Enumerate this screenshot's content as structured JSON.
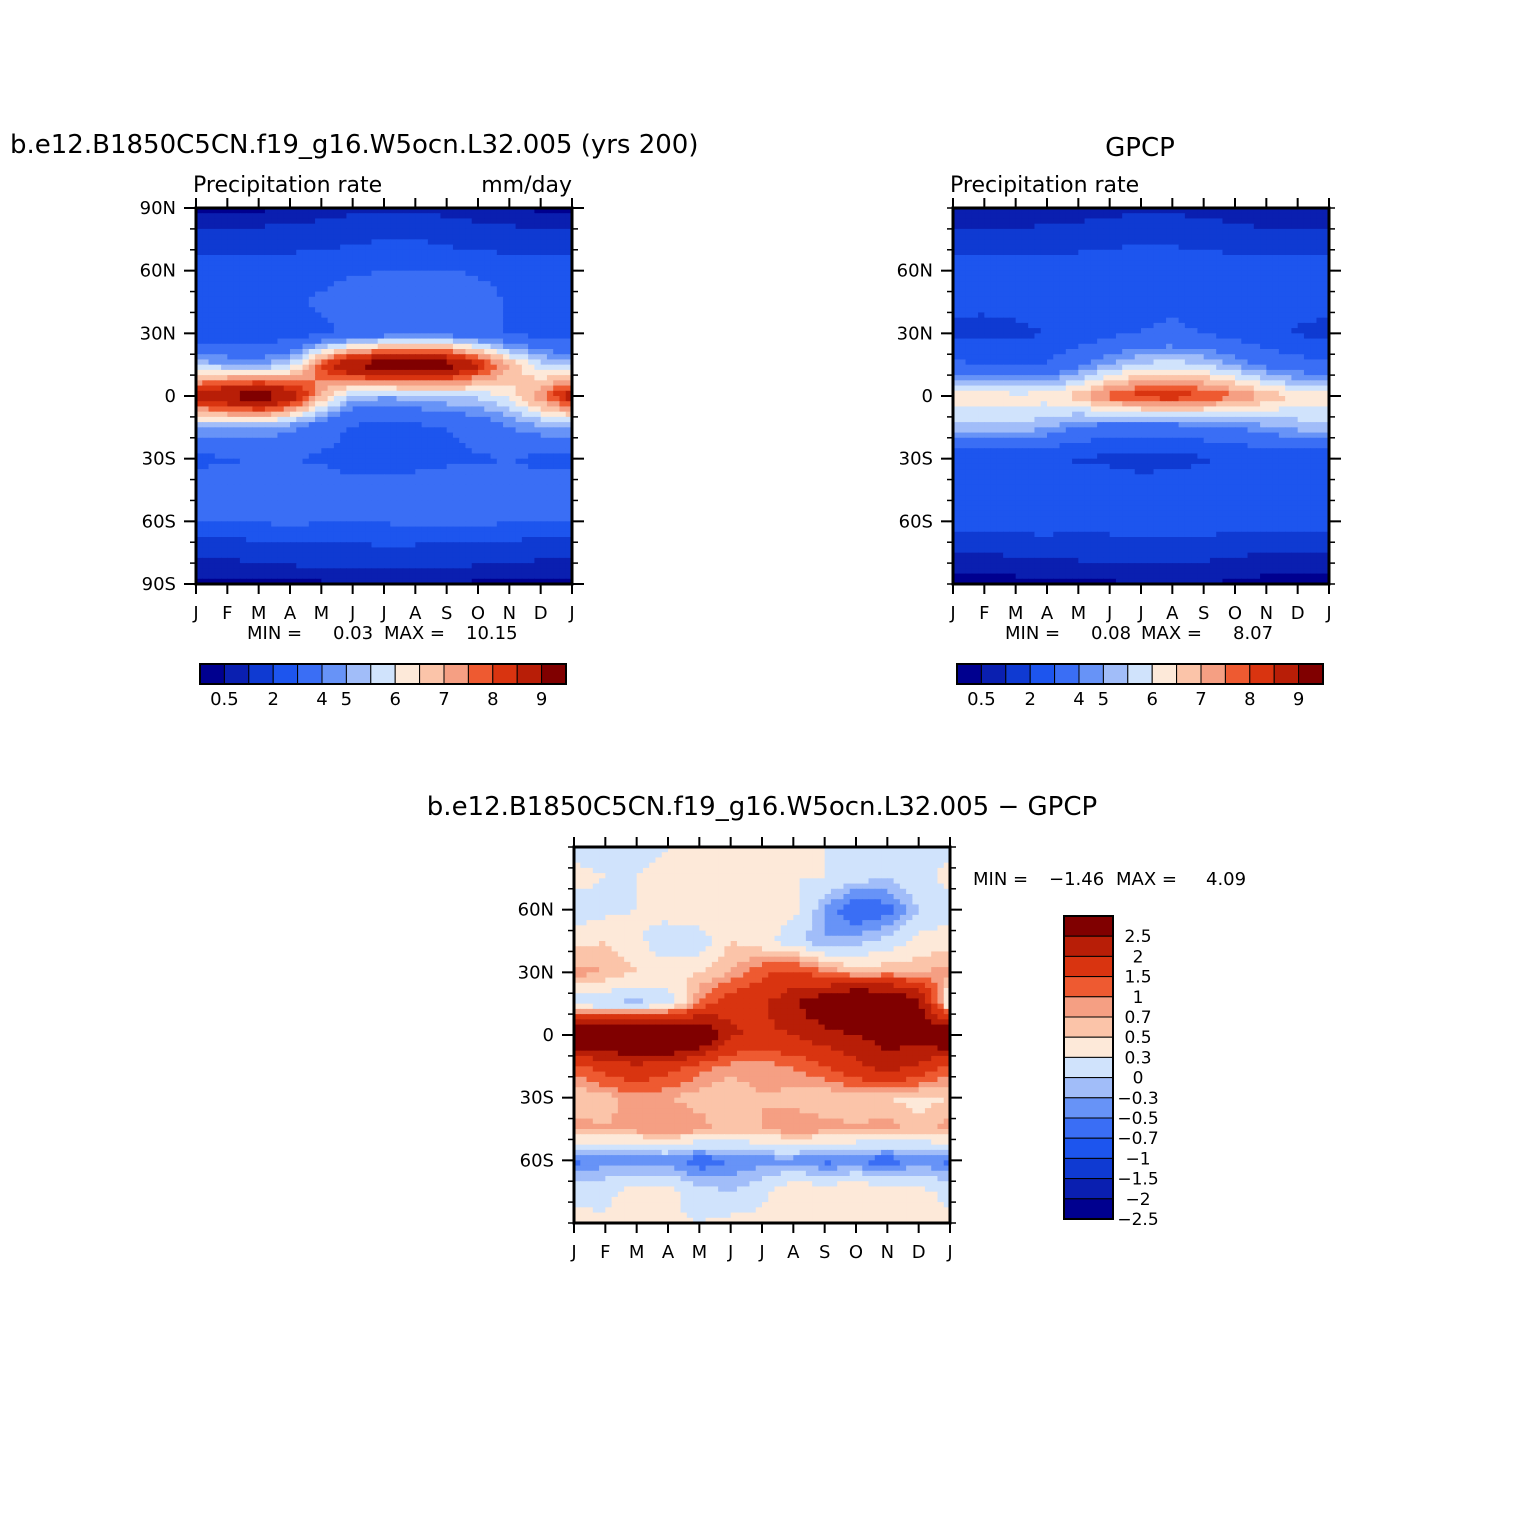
{
  "chart_data": [
    {
      "type": "heatmap",
      "title": "b.e12.B1850C5CN.f19_g16.W5ocn.L32.005 (yrs 200)",
      "left_string": "Precipitation rate",
      "right_string": "mm/day",
      "x_tick_labels": [
        "J",
        "F",
        "M",
        "A",
        "M",
        "J",
        "J",
        "A",
        "S",
        "O",
        "N",
        "D",
        "J"
      ],
      "y_tick_labels": [
        "90N",
        "60N",
        "30N",
        "0",
        "30S",
        "60S",
        "90S"
      ],
      "y_tick_values": [
        90,
        60,
        30,
        0,
        -30,
        -60,
        -90
      ],
      "ylim": [
        -90,
        90
      ],
      "stats": {
        "min_label": "MIN =",
        "min": "0.03",
        "max_label": "MAX =",
        "max": "10.15"
      },
      "colorbar": {
        "orientation": "horizontal",
        "colors": [
          "#00008f",
          "#0a1fb0",
          "#0f3ad2",
          "#1d55ee",
          "#3a6ef5",
          "#6793f7",
          "#a1bdf9",
          "#d0e3fc",
          "#fde9d9",
          "#fbc4a9",
          "#f59f83",
          "#ee5a31",
          "#d93410",
          "#b81e07",
          "#800000"
        ],
        "labels": [
          "0.5",
          "2",
          "4",
          "5",
          "6",
          "7",
          "8",
          "9"
        ]
      },
      "values_lat": [
        -90,
        -75,
        -60,
        -45,
        -30,
        -15,
        0,
        15,
        30,
        45,
        60,
        75,
        90
      ],
      "values_month": [
        "J",
        "F",
        "M",
        "A",
        "M",
        "J",
        "J",
        "A",
        "S",
        "O",
        "N",
        "D",
        "J"
      ],
      "values": [
        [
          0.3,
          0.3,
          0.3,
          0.4,
          0.4,
          0.5,
          0.5,
          0.5,
          0.5,
          0.4,
          0.4,
          0.3,
          0.3
        ],
        [
          1.2,
          1.2,
          1.3,
          1.4,
          1.5,
          1.6,
          1.7,
          1.6,
          1.5,
          1.4,
          1.3,
          1.2,
          1.2
        ],
        [
          3.0,
          3.0,
          3.1,
          3.2,
          3.1,
          3.0,
          3.1,
          3.2,
          3.3,
          3.2,
          3.1,
          3.0,
          3.0
        ],
        [
          3.4,
          3.5,
          3.8,
          3.6,
          3.4,
          3.3,
          3.3,
          3.4,
          3.6,
          3.5,
          3.4,
          3.4,
          3.4
        ],
        [
          2.8,
          2.9,
          3.0,
          3.0,
          2.9,
          2.7,
          2.6,
          2.7,
          2.8,
          2.9,
          3.0,
          2.8,
          2.8
        ],
        [
          4.5,
          4.6,
          4.5,
          4.2,
          3.4,
          2.9,
          2.7,
          2.8,
          3.0,
          3.4,
          4.0,
          4.4,
          4.5
        ],
        [
          8.5,
          9.2,
          9.8,
          8.8,
          6.5,
          4.8,
          4.6,
          4.8,
          5.0,
          5.1,
          5.6,
          7.0,
          8.5
        ],
        [
          4.8,
          4.6,
          4.4,
          5.0,
          7.5,
          9.2,
          9.8,
          10.1,
          9.6,
          8.2,
          6.5,
          5.2,
          4.8
        ],
        [
          2.4,
          2.2,
          2.2,
          2.5,
          2.8,
          3.2,
          3.5,
          3.6,
          3.6,
          3.3,
          2.9,
          2.6,
          2.4
        ],
        [
          2.4,
          2.5,
          2.7,
          2.9,
          3.1,
          3.4,
          3.6,
          3.8,
          3.7,
          3.4,
          2.9,
          2.6,
          2.4
        ],
        [
          2.6,
          2.5,
          2.5,
          2.6,
          2.8,
          2.9,
          3.0,
          3.1,
          3.0,
          2.9,
          2.7,
          2.6,
          2.6
        ],
        [
          1.3,
          1.3,
          1.4,
          1.5,
          1.6,
          1.8,
          2.0,
          2.0,
          1.7,
          1.5,
          1.4,
          1.3,
          1.3
        ],
        [
          0.4,
          0.4,
          0.4,
          0.5,
          0.6,
          0.8,
          0.9,
          0.9,
          0.7,
          0.6,
          0.5,
          0.4,
          0.4
        ]
      ]
    },
    {
      "type": "heatmap",
      "title": "GPCP",
      "left_string": "Precipitation rate",
      "right_string": "",
      "x_tick_labels": [
        "J",
        "F",
        "M",
        "A",
        "M",
        "J",
        "J",
        "A",
        "S",
        "O",
        "N",
        "D",
        "J"
      ],
      "y_tick_labels": [
        "60N",
        "30N",
        "0",
        "30S",
        "60S"
      ],
      "y_tick_values": [
        60,
        30,
        0,
        -30,
        -60
      ],
      "ylim": [
        -90,
        90
      ],
      "stats": {
        "min_label": "MIN =",
        "min": "0.08",
        "max_label": "MAX =",
        "max": "8.07"
      },
      "colorbar": {
        "orientation": "horizontal",
        "colors": [
          "#00008f",
          "#0a1fb0",
          "#0f3ad2",
          "#1d55ee",
          "#3a6ef5",
          "#6793f7",
          "#a1bdf9",
          "#d0e3fc",
          "#fde9d9",
          "#fbc4a9",
          "#f59f83",
          "#ee5a31",
          "#d93410",
          "#b81e07",
          "#800000"
        ],
        "labels": [
          "0.5",
          "2",
          "4",
          "5",
          "6",
          "7",
          "8",
          "9"
        ]
      },
      "values_lat": [
        -90,
        -75,
        -60,
        -45,
        -30,
        -15,
        0,
        15,
        30,
        45,
        60,
        75,
        90
      ],
      "values_month": [
        "J",
        "F",
        "M",
        "A",
        "M",
        "J",
        "J",
        "A",
        "S",
        "O",
        "N",
        "D",
        "J"
      ],
      "values": [
        [
          0.3,
          0.3,
          0.3,
          0.3,
          0.4,
          0.4,
          0.5,
          0.5,
          0.5,
          0.4,
          0.3,
          0.3,
          0.3
        ],
        [
          1.0,
          1.0,
          1.1,
          1.2,
          1.2,
          1.3,
          1.3,
          1.3,
          1.2,
          1.1,
          1.0,
          1.0,
          1.0
        ],
        [
          2.5,
          2.6,
          2.6,
          2.6,
          2.5,
          2.5,
          2.5,
          2.5,
          2.6,
          2.6,
          2.5,
          2.5,
          2.5
        ],
        [
          2.8,
          2.8,
          2.8,
          2.7,
          2.6,
          2.6,
          2.5,
          2.5,
          2.6,
          2.7,
          2.8,
          2.8,
          2.8
        ],
        [
          2.4,
          2.3,
          2.2,
          2.1,
          1.9,
          1.8,
          1.6,
          1.7,
          1.9,
          2.1,
          2.3,
          2.4,
          2.4
        ],
        [
          4.8,
          4.9,
          4.9,
          4.6,
          4.0,
          3.6,
          3.5,
          3.6,
          3.8,
          4.0,
          4.4,
          4.7,
          4.8
        ],
        [
          5.8,
          5.9,
          5.7,
          5.8,
          6.3,
          7.3,
          7.8,
          7.9,
          7.6,
          7.1,
          6.4,
          5.9,
          5.8
        ],
        [
          3.2,
          3.0,
          2.9,
          3.1,
          3.8,
          4.6,
          5.1,
          5.3,
          5.0,
          4.4,
          3.8,
          3.4,
          3.2
        ],
        [
          1.8,
          1.7,
          1.8,
          2.0,
          2.4,
          2.8,
          3.0,
          3.1,
          3.0,
          2.6,
          2.2,
          1.9,
          1.8
        ],
        [
          2.2,
          2.2,
          2.3,
          2.4,
          2.6,
          2.8,
          2.9,
          2.9,
          2.8,
          2.6,
          2.4,
          2.3,
          2.2
        ],
        [
          2.6,
          2.6,
          2.5,
          2.6,
          2.7,
          2.8,
          2.8,
          2.8,
          2.7,
          2.7,
          2.6,
          2.6,
          2.6
        ],
        [
          1.2,
          1.2,
          1.3,
          1.4,
          1.5,
          1.7,
          1.8,
          1.8,
          1.6,
          1.4,
          1.3,
          1.2,
          1.2
        ],
        [
          0.5,
          0.5,
          0.5,
          0.5,
          0.6,
          0.7,
          0.8,
          0.8,
          0.7,
          0.6,
          0.5,
          0.5,
          0.5
        ]
      ]
    },
    {
      "type": "heatmap",
      "title": "b.e12.B1850C5CN.f19_g16.W5ocn.L32.005 − GPCP",
      "x_tick_labels": [
        "J",
        "F",
        "M",
        "A",
        "M",
        "J",
        "J",
        "A",
        "S",
        "O",
        "N",
        "D",
        "J"
      ],
      "y_tick_labels": [
        "60N",
        "30N",
        "0",
        "30S",
        "60S"
      ],
      "y_tick_values": [
        60,
        30,
        0,
        -30,
        -60
      ],
      "ylim": [
        -90,
        90
      ],
      "stats": {
        "min_label": "MIN =",
        "min": "−1.46",
        "max_label": "MAX =",
        "max": "4.09"
      },
      "colorbar": {
        "orientation": "vertical",
        "colors": [
          "#00008f",
          "#0a1fb0",
          "#0f3ad2",
          "#1d55ee",
          "#3a6ef5",
          "#6793f7",
          "#a1bdf9",
          "#d0e3fc",
          "#fde9d9",
          "#fbc4a9",
          "#f59f83",
          "#ee5a31",
          "#d93410",
          "#b81e07",
          "#800000"
        ],
        "labels": [
          "2.5",
          "2",
          "1.5",
          "1",
          "0.7",
          "0.5",
          "0.3",
          "0",
          "−0.3",
          "−0.5",
          "−0.7",
          "−1",
          "−1.5",
          "−2",
          "−2.5"
        ]
      },
      "values_lat": [
        -90,
        -75,
        -60,
        -45,
        -30,
        -15,
        0,
        15,
        30,
        45,
        60,
        75,
        90
      ],
      "values_month": [
        "J",
        "F",
        "M",
        "A",
        "M",
        "J",
        "J",
        "A",
        "S",
        "O",
        "N",
        "D",
        "J"
      ],
      "values": [
        [
          0.1,
          0.05,
          0.1,
          0.05,
          0.0,
          0.1,
          0.1,
          0.05,
          0.0,
          0.0,
          0.1,
          0.1,
          0.1
        ],
        [
          -0.1,
          -0.1,
          0.2,
          0.1,
          -0.2,
          -0.3,
          -0.1,
          0.3,
          0.2,
          0.3,
          0.2,
          0.1,
          -0.1
        ],
        [
          -0.8,
          -0.6,
          -0.7,
          -0.6,
          -0.9,
          -0.7,
          -0.6,
          -0.6,
          -0.8,
          -0.7,
          -0.9,
          -0.6,
          -0.8
        ],
        [
          0.6,
          0.5,
          0.6,
          0.7,
          0.6,
          0.4,
          0.5,
          0.7,
          0.6,
          0.5,
          0.6,
          0.4,
          0.6
        ],
        [
          0.3,
          0.4,
          0.6,
          0.5,
          0.4,
          0.3,
          0.5,
          0.4,
          0.3,
          0.4,
          0.3,
          0.2,
          0.3
        ],
        [
          0.8,
          1.2,
          1.4,
          1.2,
          0.8,
          0.6,
          0.6,
          0.7,
          1.0,
          1.3,
          1.8,
          1.4,
          0.8
        ],
        [
          3.0,
          2.9,
          3.2,
          3.4,
          2.8,
          1.6,
          1.4,
          1.5,
          1.8,
          2.0,
          2.3,
          2.2,
          3.0
        ],
        [
          -0.2,
          -0.3,
          -0.4,
          -0.2,
          0.7,
          1.3,
          1.4,
          1.9,
          2.6,
          3.2,
          3.0,
          2.2,
          -0.2
        ],
        [
          0.6,
          0.5,
          0.3,
          0.2,
          0.3,
          0.5,
          0.9,
          1.1,
          0.7,
          0.4,
          0.5,
          0.5,
          0.6
        ],
        [
          0.2,
          0.3,
          0.1,
          -0.3,
          -0.2,
          0.3,
          0.1,
          -0.2,
          -0.5,
          -0.4,
          -0.2,
          0.1,
          0.2
        ],
        [
          -0.2,
          -0.1,
          0.0,
          0.2,
          0.3,
          0.2,
          0.2,
          0.1,
          -0.5,
          -1.0,
          -0.8,
          -0.3,
          -0.2
        ],
        [
          0.1,
          0.0,
          0.0,
          0.1,
          0.2,
          0.1,
          0.0,
          0.0,
          0.0,
          -0.2,
          -0.3,
          -0.1,
          0.1
        ],
        [
          -0.1,
          -0.1,
          -0.1,
          0.0,
          0.0,
          0.1,
          0.1,
          0.1,
          0.0,
          0.0,
          -0.1,
          -0.1,
          -0.1
        ]
      ]
    }
  ]
}
